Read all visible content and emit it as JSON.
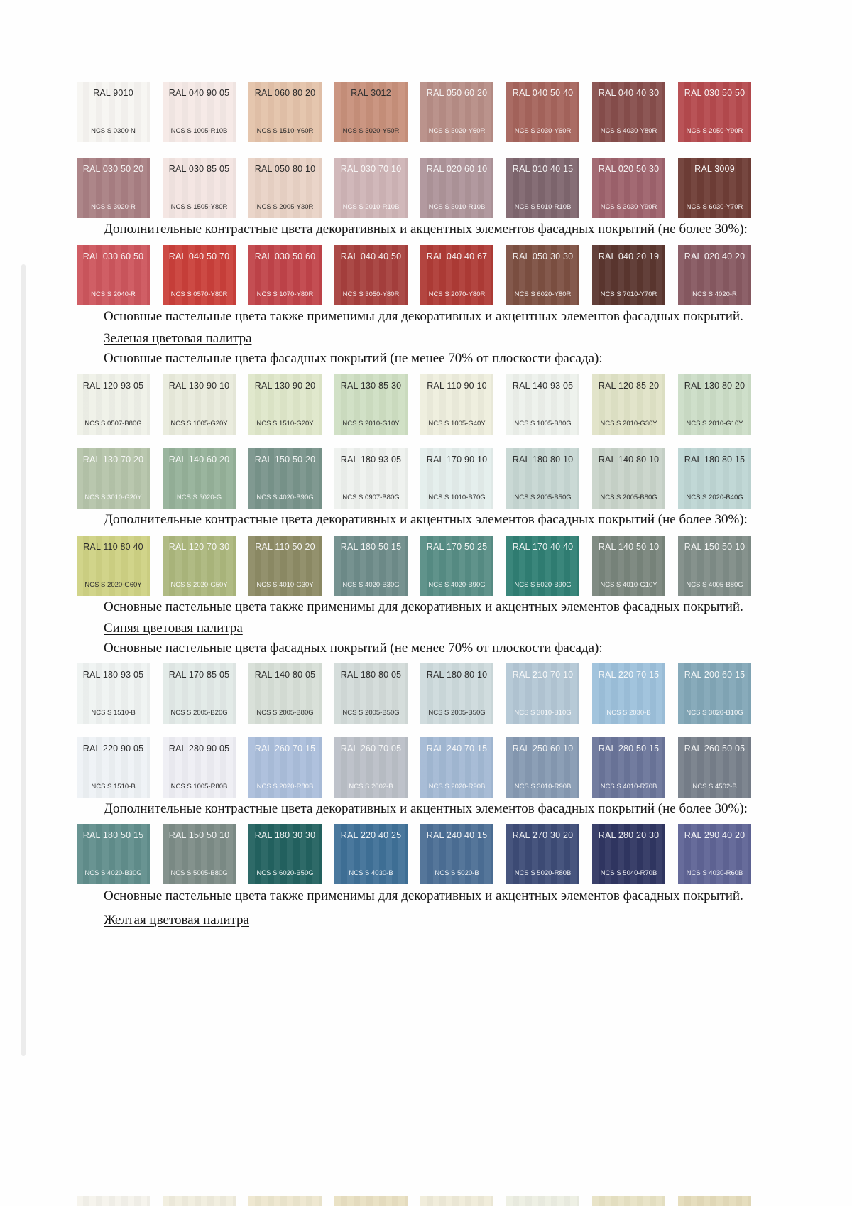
{
  "texts": {
    "contrast": "Дополнительные контрастные цвета декоративных и акцентных элементов фасадных покрытий (не более 30%):",
    "pastel": "Основные пастельные цвета также применимы для декоративных и акцентных элементов фасадных покрытий.",
    "main70": "Основные пастельные цвета фасадных покрытий (не менее 70% от плоскости фасада):",
    "green_heading": "Зеленая цветовая палитра",
    "blue_heading": "Синяя цветовая палитра",
    "yellow_heading": "Желтая цветовая палитра"
  },
  "rows": {
    "red_main_1": [
      {
        "ral": "RAL 9010",
        "ncs": "NCS S 0300-N",
        "color": "#f7f5f2",
        "text_color": "dark"
      },
      {
        "ral": "RAL 040 90 05",
        "ncs": "NCS S 1005-R10B",
        "color": "#f5e9e6",
        "text_color": "dark"
      },
      {
        "ral": "RAL 060 80 20",
        "ncs": "NCS S 1510-Y60R",
        "color": "#e4c3aa",
        "text_color": "dark"
      },
      {
        "ral": "RAL 3012",
        "ncs": "NCS S 3020-Y50R",
        "color": "#c8907b",
        "text_color": "dark"
      },
      {
        "ral": "RAL 050 60 20",
        "ncs": "NCS S 3020-Y60R",
        "color": "#b78d86",
        "text_color": "light"
      },
      {
        "ral": "RAL 040 50 40",
        "ncs": "NCS S 3030-Y60R",
        "color": "#a6645c",
        "text_color": "light"
      },
      {
        "ral": "RAL 040 40 30",
        "ncs": "NCS S 4030-Y80R",
        "color": "#874e4c",
        "text_color": "light"
      },
      {
        "ral": "RAL 030 50 50",
        "ncs": "NCS S 2050-Y90R",
        "color": "#b54a4e",
        "text_color": "light"
      }
    ],
    "red_main_2": [
      {
        "ral": "RAL 030 50 20",
        "ncs": "NCS S 3020-R",
        "color": "#a97f83",
        "text_color": "light"
      },
      {
        "ral": "RAL 030 85 05",
        "ncs": "NCS S 1505-Y80R",
        "color": "#f3e5e2",
        "text_color": "dark"
      },
      {
        "ral": "RAL 050 80 10",
        "ncs": "NCS S 2005-Y30R",
        "color": "#e9d3c6",
        "text_color": "dark"
      },
      {
        "ral": "RAL 030 70 10",
        "ncs": "NCS S 2010-R10B",
        "color": "#cfb4b6",
        "text_color": "light"
      },
      {
        "ral": "RAL 020 60 10",
        "ncs": "NCS S 3010-R10B",
        "color": "#ae949a",
        "text_color": "light"
      },
      {
        "ral": "RAL 010 40 15",
        "ncs": "NCS S 5010-R10B",
        "color": "#7f666f",
        "text_color": "light"
      },
      {
        "ral": "RAL 020 50 30",
        "ncs": "NCS S 3030-Y90R",
        "color": "#9e626c",
        "text_color": "light"
      },
      {
        "ral": "RAL 3009",
        "ncs": "NCS S 6030-Y70R",
        "color": "#6f3d36",
        "text_color": "light"
      }
    ],
    "red_accent": [
      {
        "ral": "RAL 030 60 50",
        "ncs": "NCS S 2040-R",
        "color": "#cd565d",
        "text_color": "light"
      },
      {
        "ral": "RAL 040 50 70",
        "ncs": "NCS S 0570-Y80R",
        "color": "#ca403a",
        "text_color": "light"
      },
      {
        "ral": "RAL 030 50 60",
        "ncs": "NCS S 1070-Y80R",
        "color": "#c1444a",
        "text_color": "light"
      },
      {
        "ral": "RAL 040 40 50",
        "ncs": "NCS S 3050-Y80R",
        "color": "#a7403d",
        "text_color": "light"
      },
      {
        "ral": "RAL 040 40 67",
        "ncs": "NCS S 2070-Y80R",
        "color": "#af3b36",
        "text_color": "light"
      },
      {
        "ral": "RAL 050 30 30",
        "ncs": "NCS S 6020-Y80R",
        "color": "#7d5042",
        "text_color": "light"
      },
      {
        "ral": "RAL 040 20 19",
        "ncs": "NCS S 7010-Y70R",
        "color": "#5b362f",
        "text_color": "light"
      },
      {
        "ral": "RAL 020 40 20",
        "ncs": "NCS S 4020-R",
        "color": "#875961",
        "text_color": "light"
      }
    ],
    "green_main_1": [
      {
        "ral": "RAL 120 93 05",
        "ncs": "NCS S 0507-B80G",
        "color": "#eff1e8",
        "text_color": "dark"
      },
      {
        "ral": "RAL 130 90 10",
        "ncs": "NCS S 1005-G20Y",
        "color": "#e9ebdc",
        "text_color": "dark"
      },
      {
        "ral": "RAL 130 90 20",
        "ncs": "NCS S 1510-G20Y",
        "color": "#dfe7ca",
        "text_color": "dark"
      },
      {
        "ral": "RAL 130 85 30",
        "ncs": "NCS S 2010-G10Y",
        "color": "#cfdfc3",
        "text_color": "dark"
      },
      {
        "ral": "RAL 110 90 10",
        "ncs": "NCS S 1005-G40Y",
        "color": "#eeeedd",
        "text_color": "dark"
      },
      {
        "ral": "RAL 140 93 05",
        "ncs": "NCS S 1005-B80G",
        "color": "#edf1ec",
        "text_color": "dark"
      },
      {
        "ral": "RAL 120 85 20",
        "ncs": "NCS S 2010-G30Y",
        "color": "#e0e3c7",
        "text_color": "dark"
      },
      {
        "ral": "RAL 130 80 20",
        "ncs": "NCS S 2010-G10Y",
        "color": "#ccddc7",
        "text_color": "dark"
      }
    ],
    "green_main_2": [
      {
        "ral": "RAL 130 70 20",
        "ncs": "NCS S 3010-G20Y",
        "color": "#b5c4aa",
        "text_color": "light"
      },
      {
        "ral": "RAL 140 60 20",
        "ncs": "NCS S 3020-G",
        "color": "#95b199",
        "text_color": "light"
      },
      {
        "ral": "RAL 150 50 20",
        "ncs": "NCS S 4020-B90G",
        "color": "#79948b",
        "text_color": "light"
      },
      {
        "ral": "RAL 180 93 05",
        "ncs": "NCS S 0907-B80G",
        "color": "#eef1ee",
        "text_color": "dark"
      },
      {
        "ral": "RAL 170 90 10",
        "ncs": "NCS S 1010-B70G",
        "color": "#e4eeec",
        "text_color": "dark"
      },
      {
        "ral": "RAL 180 80 10",
        "ncs": "NCS S 2005-B50G",
        "color": "#c7d7d3",
        "text_color": "dark"
      },
      {
        "ral": "RAL 140 80 10",
        "ncs": "NCS S 2005-B80G",
        "color": "#c9d4ca",
        "text_color": "dark"
      },
      {
        "ral": "RAL 180 80 15",
        "ncs": "NCS S 2020-B40G",
        "color": "#bed6d4",
        "text_color": "dark"
      }
    ],
    "green_accent": [
      {
        "ral": "RAL 110 80 40",
        "ncs": "NCS S 2020-G60Y",
        "color": "#cfd284",
        "text_color": "dark"
      },
      {
        "ral": "RAL 120 70 30",
        "ncs": "NCS S 2020-G50Y",
        "color": "#acb77d",
        "text_color": "light"
      },
      {
        "ral": "RAL 110 50 20",
        "ncs": "NCS S 4010-G30Y",
        "color": "#8d8b65",
        "text_color": "light"
      },
      {
        "ral": "RAL 180 50 15",
        "ncs": "NCS S 4020-B30G",
        "color": "#6f8c8a",
        "text_color": "light"
      },
      {
        "ral": "RAL 170 50 25",
        "ncs": "NCS S 4020-B90G",
        "color": "#578d85",
        "text_color": "light"
      },
      {
        "ral": "RAL 170 40 40",
        "ncs": "NCS S 5020-B90G",
        "color": "#307f74",
        "text_color": "light"
      },
      {
        "ral": "RAL 140 50 10",
        "ncs": "NCS S 4010-G10Y",
        "color": "#79857c",
        "text_color": "light"
      },
      {
        "ral": "RAL 150 50 10",
        "ncs": "NCS S 4005-B80G",
        "color": "#7f8c87",
        "text_color": "light"
      }
    ],
    "blue_main_1": [
      {
        "ral": "RAL 180 93 05",
        "ncs": "NCS S 1510-B",
        "color": "#eff3f2",
        "text_color": "dark"
      },
      {
        "ral": "RAL 170 85 05",
        "ncs": "NCS S 2005-B20G",
        "color": "#e2eae7",
        "text_color": "dark"
      },
      {
        "ral": "RAL 140 80 05",
        "ncs": "NCS S 2005-B80G",
        "color": "#d7dfd7",
        "text_color": "dark"
      },
      {
        "ral": "RAL 180 80 05",
        "ncs": "NCS S 2005-B50G",
        "color": "#d3dbd9",
        "text_color": "dark"
      },
      {
        "ral": "RAL 180 80 10",
        "ncs": "NCS S 2005-B50G",
        "color": "#cddadc",
        "text_color": "dark"
      },
      {
        "ral": "RAL 210 70 10",
        "ncs": "NCS S 3010-B10G",
        "color": "#b3c7d5",
        "text_color": "light"
      },
      {
        "ral": "RAL 220 70 15",
        "ncs": "NCS S 2030-B",
        "color": "#9dc1db",
        "text_color": "light"
      },
      {
        "ral": "RAL 200 60 15",
        "ncs": "NCS S 3020-B10G",
        "color": "#82a7b7",
        "text_color": "light"
      }
    ],
    "blue_main_2": [
      {
        "ral": "RAL 220 90 05",
        "ncs": "NCS S 1510-B",
        "color": "#eef2f5",
        "text_color": "dark"
      },
      {
        "ral": "RAL 280 90 05",
        "ncs": "NCS S 1005-R80B",
        "color": "#eeeef4",
        "text_color": "dark"
      },
      {
        "ral": "RAL 260 70 15",
        "ncs": "NCS S 2020-R80B",
        "color": "#abbedb",
        "text_color": "light"
      },
      {
        "ral": "RAL 260 70 05",
        "ncs": "NCS S 2002-B",
        "color": "#babfc7",
        "text_color": "light"
      },
      {
        "ral": "RAL 240 70 15",
        "ncs": "NCS S 2020-R90B",
        "color": "#a3b9d4",
        "text_color": "light"
      },
      {
        "ral": "RAL 250 60 10",
        "ncs": "NCS S 3010-R90B",
        "color": "#869ab2",
        "text_color": "light"
      },
      {
        "ral": "RAL 280 50 15",
        "ncs": "NCS S 4010-R70B",
        "color": "#6b759a",
        "text_color": "light"
      },
      {
        "ral": "RAL 260 50 05",
        "ncs": "NCS S 4502-B",
        "color": "#777f8a",
        "text_color": "light"
      }
    ],
    "blue_accent": [
      {
        "ral": "RAL 180 50 15",
        "ncs": "NCS S 4020-B30G",
        "color": "#618e8c",
        "text_color": "light"
      },
      {
        "ral": "RAL 150 50 10",
        "ncs": "NCS S 5005-B80G",
        "color": "#7d8c87",
        "text_color": "light"
      },
      {
        "ral": "RAL 180 30 30",
        "ncs": "NCS S 6020-B50G",
        "color": "#236260",
        "text_color": "light"
      },
      {
        "ral": "RAL 220 40 25",
        "ncs": "NCS S 4030-B",
        "color": "#407198",
        "text_color": "light"
      },
      {
        "ral": "RAL 240 40 15",
        "ncs": "NCS S 5020-B",
        "color": "#4c6f95",
        "text_color": "light"
      },
      {
        "ral": "RAL 270 30 20",
        "ncs": "NCS S 5020-R80B",
        "color": "#3d4c77",
        "text_color": "light"
      },
      {
        "ral": "RAL 280 20 30",
        "ncs": "NCS S 5040-R70B",
        "color": "#303662",
        "text_color": "light"
      },
      {
        "ral": "RAL 290 40 20",
        "ncs": "NCS S 4030-R60B",
        "color": "#5f6496",
        "text_color": "light"
      }
    ],
    "yellow_partial": [
      {
        "color": "#f5f3ec"
      },
      {
        "color": "#f1eede"
      },
      {
        "color": "#eee7cf"
      },
      {
        "color": "#e9e0c2"
      },
      {
        "color": "#f0ecd9"
      },
      {
        "color": "#edefe3"
      },
      {
        "color": "#e8e3c5"
      },
      {
        "color": "#e5dcba"
      }
    ]
  }
}
